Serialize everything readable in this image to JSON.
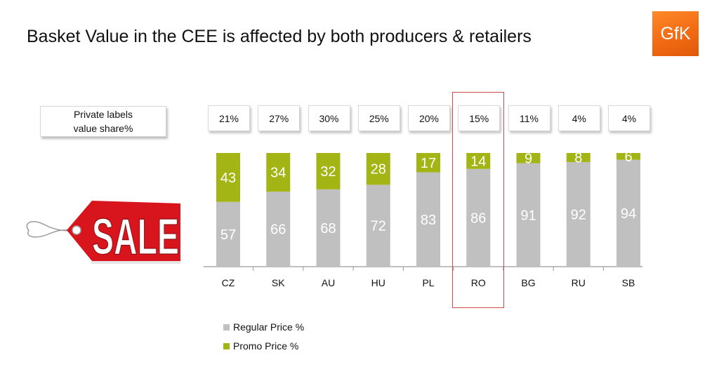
{
  "title": "Basket Value in the CEE is affected by both producers & retailers",
  "logo": {
    "text": "GfK"
  },
  "private_label_box": {
    "line1": "Private labels",
    "line2": "value share%"
  },
  "private_label_shares": [
    "21%",
    "27%",
    "30%",
    "25%",
    "20%",
    "15%",
    "11%",
    "4%",
    "4%"
  ],
  "highlighted_category": "RO",
  "sale_tag": {
    "text": "SALE"
  },
  "colors": {
    "regular": "#c0c0c0",
    "promo": "#a3b415",
    "highlight": "#d24b4b",
    "logo": "#f26a12",
    "sale": "#d8141c"
  },
  "chart_data": {
    "type": "bar",
    "stacked": true,
    "categories": [
      "CZ",
      "SK",
      "AU",
      "HU",
      "PL",
      "RO",
      "BG",
      "RU",
      "SB"
    ],
    "series": [
      {
        "name": "Regular Price %",
        "values": [
          57,
          66,
          68,
          72,
          83,
          86,
          91,
          92,
          94
        ]
      },
      {
        "name": "Promo Price %",
        "values": [
          43,
          34,
          32,
          28,
          17,
          14,
          9,
          8,
          6
        ]
      }
    ],
    "ylim": [
      0,
      100
    ],
    "grid": false,
    "legend_position": "bottom-left"
  }
}
